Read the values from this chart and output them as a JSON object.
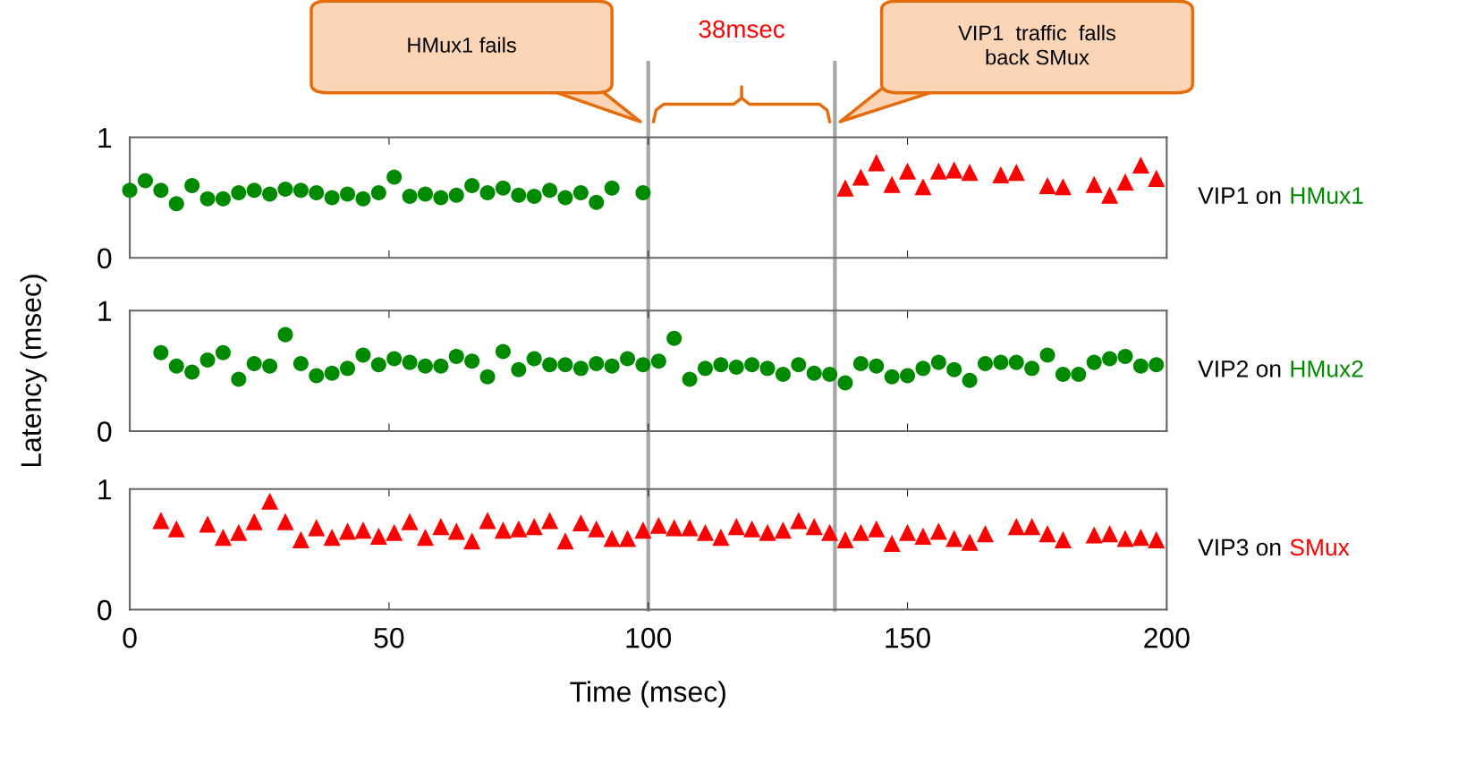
{
  "chart_data": [
    {
      "type": "scatter",
      "xlim": [
        0,
        200
      ],
      "ylim": [
        0,
        1
      ],
      "xticks": [
        0,
        50,
        100,
        150,
        200
      ],
      "yticks": [
        0,
        1
      ],
      "tick_labels": "y",
      "grid": false,
      "legend": false,
      "series": [
        {
          "color": "#008a00",
          "marker": "circle",
          "x": [
            0,
            3,
            6,
            9,
            12,
            15,
            18,
            21,
            24,
            27,
            30,
            33,
            36,
            39,
            42,
            45,
            48,
            51,
            54,
            57,
            60,
            63,
            66,
            69,
            72,
            75,
            78,
            81,
            84,
            87,
            90,
            93,
            99
          ],
          "values": [
            0.56,
            0.64,
            0.56,
            0.45,
            0.6,
            0.49,
            0.49,
            0.54,
            0.56,
            0.53,
            0.57,
            0.56,
            0.54,
            0.5,
            0.53,
            0.49,
            0.54,
            0.67,
            0.51,
            0.53,
            0.5,
            0.52,
            0.6,
            0.54,
            0.58,
            0.52,
            0.51,
            0.56,
            0.5,
            0.54,
            0.46,
            0.58,
            0.54
          ]
        },
        {
          "color": "#ff0000",
          "marker": "triangle",
          "x": [
            138,
            141,
            144,
            147,
            150,
            153,
            156,
            159,
            162,
            168,
            171,
            177,
            180,
            186,
            189,
            192,
            195,
            198
          ],
          "values": [
            0.58,
            0.67,
            0.79,
            0.61,
            0.72,
            0.59,
            0.72,
            0.73,
            0.71,
            0.69,
            0.71,
            0.6,
            0.59,
            0.61,
            0.52,
            0.63,
            0.77,
            0.66
          ]
        }
      ],
      "ref_lines": [
        {
          "axis": "x",
          "value": 100,
          "color": "#a6a6a6"
        },
        {
          "axis": "x",
          "value": 136,
          "color": "#a6a6a6"
        }
      ],
      "annotations": [
        "VIP1 on HMux1",
        "HMux1 fails",
        "VIP1  traffic  falls\nback SMux",
        "38msec"
      ]
    },
    {
      "type": "scatter",
      "xlim": [
        0,
        200
      ],
      "ylim": [
        0,
        1
      ],
      "xticks": [
        0,
        50,
        100,
        150,
        200
      ],
      "yticks": [
        0,
        1
      ],
      "tick_labels": "y",
      "grid": false,
      "legend": false,
      "ylabel": "Latency (msec)",
      "series": [
        {
          "color": "#008a00",
          "marker": "circle",
          "x": [
            6,
            9,
            12,
            15,
            18,
            21,
            24,
            27,
            30,
            33,
            36,
            39,
            42,
            45,
            48,
            51,
            54,
            57,
            60,
            63,
            66,
            69,
            72,
            75,
            78,
            81,
            84,
            87,
            90,
            93,
            96,
            99,
            102,
            105,
            108,
            111,
            114,
            117,
            120,
            123,
            126,
            129,
            132,
            135,
            138,
            141,
            144,
            147,
            150,
            153,
            156,
            159,
            162,
            165,
            168,
            171,
            174,
            177,
            180,
            183,
            186,
            189,
            192,
            195,
            198
          ],
          "values": [
            0.65,
            0.54,
            0.49,
            0.59,
            0.65,
            0.43,
            0.56,
            0.54,
            0.8,
            0.56,
            0.46,
            0.48,
            0.52,
            0.63,
            0.55,
            0.6,
            0.57,
            0.54,
            0.54,
            0.62,
            0.58,
            0.45,
            0.66,
            0.51,
            0.6,
            0.55,
            0.55,
            0.52,
            0.56,
            0.54,
            0.6,
            0.55,
            0.58,
            0.77,
            0.43,
            0.52,
            0.55,
            0.53,
            0.55,
            0.52,
            0.47,
            0.55,
            0.48,
            0.47,
            0.4,
            0.56,
            0.54,
            0.45,
            0.46,
            0.52,
            0.57,
            0.51,
            0.42,
            0.56,
            0.57,
            0.57,
            0.52,
            0.63,
            0.47,
            0.47,
            0.57,
            0.6,
            0.62,
            0.54,
            0.55
          ]
        }
      ],
      "ref_lines": [
        {
          "axis": "x",
          "value": 100,
          "color": "#a6a6a6"
        },
        {
          "axis": "x",
          "value": 136,
          "color": "#a6a6a6"
        }
      ],
      "annotations": [
        "VIP2 on HMux2"
      ]
    },
    {
      "type": "scatter",
      "xlim": [
        0,
        200
      ],
      "ylim": [
        0,
        1
      ],
      "xticks": [
        0,
        50,
        100,
        150,
        200
      ],
      "yticks": [
        0,
        1
      ],
      "grid": false,
      "legend": false,
      "xlabel": "Time (msec)",
      "series": [
        {
          "color": "#ff0000",
          "marker": "triangle",
          "x": [
            6,
            9,
            15,
            18,
            21,
            24,
            27,
            30,
            33,
            36,
            39,
            42,
            45,
            48,
            51,
            54,
            57,
            60,
            63,
            66,
            69,
            72,
            75,
            78,
            81,
            84,
            87,
            90,
            93,
            96,
            99,
            102,
            105,
            108,
            111,
            114,
            117,
            120,
            123,
            126,
            129,
            132,
            135,
            138,
            141,
            144,
            147,
            150,
            153,
            156,
            159,
            162,
            165,
            171,
            174,
            177,
            180,
            186,
            189,
            192,
            195,
            198
          ],
          "values": [
            0.74,
            0.67,
            0.71,
            0.6,
            0.64,
            0.73,
            0.9,
            0.73,
            0.58,
            0.68,
            0.6,
            0.65,
            0.66,
            0.61,
            0.64,
            0.73,
            0.6,
            0.69,
            0.65,
            0.57,
            0.74,
            0.66,
            0.67,
            0.69,
            0.74,
            0.57,
            0.72,
            0.67,
            0.59,
            0.59,
            0.66,
            0.7,
            0.68,
            0.68,
            0.64,
            0.6,
            0.69,
            0.67,
            0.64,
            0.66,
            0.74,
            0.69,
            0.64,
            0.58,
            0.64,
            0.67,
            0.55,
            0.64,
            0.61,
            0.65,
            0.59,
            0.56,
            0.63,
            0.69,
            0.69,
            0.63,
            0.58,
            0.62,
            0.63,
            0.59,
            0.6,
            0.58
          ]
        }
      ],
      "ref_lines": [
        {
          "axis": "x",
          "value": 100,
          "color": "#a6a6a6"
        },
        {
          "axis": "x",
          "value": 136,
          "color": "#a6a6a6"
        }
      ],
      "annotations": [
        "VIP3 on SMux"
      ]
    }
  ]
}
